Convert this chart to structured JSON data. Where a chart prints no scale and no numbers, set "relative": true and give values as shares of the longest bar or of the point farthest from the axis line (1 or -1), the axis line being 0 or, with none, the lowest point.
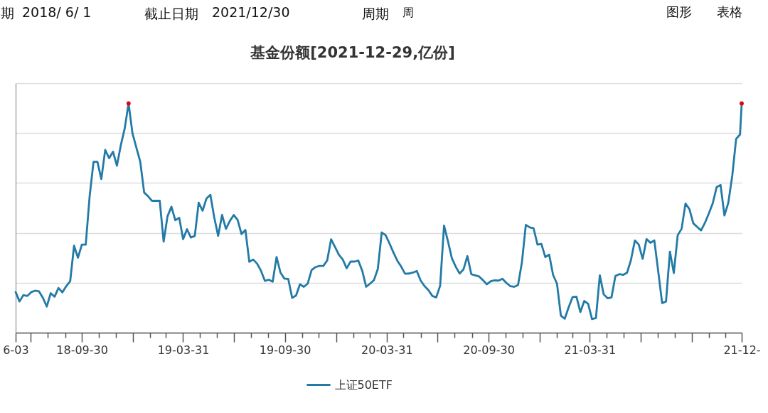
{
  "chart_data": {
    "type": "line",
    "title": "基金份额[2021-12-29,亿份]",
    "annotations": [
      "期",
      "2018/ 6/ 1",
      "截止日期",
      "2021/12/30",
      "周期",
      "周",
      "图形",
      "表格"
    ],
    "relative": true,
    "grid": "y",
    "legend": "bottom",
    "xlim": [
      "2018-06-03",
      "2021-12-29"
    ],
    "xticks": [
      {
        "value": "2018-06-03",
        "label": "6-03"
      },
      {
        "value": "2018-06-30",
        "label": null
      },
      {
        "value": "2018-07-31",
        "label": null
      },
      {
        "value": "2018-08-31",
        "label": null
      },
      {
        "value": "2018-09-30",
        "label": "18-09-30"
      },
      {
        "value": "2018-10-31",
        "label": null
      },
      {
        "value": "2018-11-30",
        "label": null
      },
      {
        "value": "2018-12-31",
        "label": null
      },
      {
        "value": "2019-01-31",
        "label": null
      },
      {
        "value": "2019-02-28",
        "label": null
      },
      {
        "value": "2019-03-31",
        "label": "19-03-31"
      },
      {
        "value": "2019-04-30",
        "label": null
      },
      {
        "value": "2019-05-31",
        "label": null
      },
      {
        "value": "2019-06-30",
        "label": null
      },
      {
        "value": "2019-07-31",
        "label": null
      },
      {
        "value": "2019-08-31",
        "label": null
      },
      {
        "value": "2019-09-30",
        "label": "19-09-30"
      },
      {
        "value": "2019-10-31",
        "label": null
      },
      {
        "value": "2019-11-30",
        "label": null
      },
      {
        "value": "2019-12-31",
        "label": null
      },
      {
        "value": "2020-01-31",
        "label": null
      },
      {
        "value": "2020-02-29",
        "label": null
      },
      {
        "value": "2020-03-31",
        "label": "20-03-31"
      },
      {
        "value": "2020-04-30",
        "label": null
      },
      {
        "value": "2020-05-31",
        "label": null
      },
      {
        "value": "2020-06-30",
        "label": null
      },
      {
        "value": "2020-07-31",
        "label": null
      },
      {
        "value": "2020-08-31",
        "label": null
      },
      {
        "value": "2020-09-30",
        "label": "20-09-30"
      },
      {
        "value": "2020-10-31",
        "label": null
      },
      {
        "value": "2020-11-30",
        "label": null
      },
      {
        "value": "2020-12-31",
        "label": null
      },
      {
        "value": "2021-01-31",
        "label": null
      },
      {
        "value": "2021-02-28",
        "label": null
      },
      {
        "value": "2021-03-31",
        "label": "21-03-31"
      },
      {
        "value": "2021-04-30",
        "label": null
      },
      {
        "value": "2021-05-31",
        "label": null
      },
      {
        "value": "2021-06-30",
        "label": null
      },
      {
        "value": "2021-07-31",
        "label": null
      },
      {
        "value": "2021-08-31",
        "label": null
      },
      {
        "value": "2021-09-30",
        "label": null
      },
      {
        "value": "2021-10-31",
        "label": null
      },
      {
        "value": "2021-11-30",
        "label": null
      },
      {
        "value": "2021-12-29",
        "label": "21-12-"
      }
    ],
    "x": [
      "2018-06-03",
      "2018-06-10",
      "2018-06-17",
      "2018-06-24",
      "2018-07-01",
      "2018-07-08",
      "2018-07-15",
      "2018-07-22",
      "2018-07-29",
      "2018-08-05",
      "2018-08-12",
      "2018-08-19",
      "2018-08-26",
      "2018-09-02",
      "2018-09-09",
      "2018-09-16",
      "2018-09-23",
      "2018-09-30",
      "2018-10-07",
      "2018-10-14",
      "2018-10-21",
      "2018-10-28",
      "2018-11-04",
      "2018-11-11",
      "2018-11-18",
      "2018-11-25",
      "2018-12-02",
      "2018-12-09",
      "2018-12-16",
      "2018-12-23",
      "2018-12-30",
      "2019-01-06",
      "2019-01-13",
      "2019-01-20",
      "2019-01-27",
      "2019-02-03",
      "2019-02-10",
      "2019-02-17",
      "2019-02-24",
      "2019-03-03",
      "2019-03-10",
      "2019-03-17",
      "2019-03-24",
      "2019-03-31",
      "2019-04-07",
      "2019-04-14",
      "2019-04-21",
      "2019-04-28",
      "2019-05-05",
      "2019-05-12",
      "2019-05-19",
      "2019-05-26",
      "2019-06-02",
      "2019-06-09",
      "2019-06-16",
      "2019-06-23",
      "2019-06-30",
      "2019-07-07",
      "2019-07-14",
      "2019-07-21",
      "2019-07-28",
      "2019-08-04",
      "2019-08-11",
      "2019-08-18",
      "2019-08-25",
      "2019-09-01",
      "2019-09-08",
      "2019-09-15",
      "2019-09-22",
      "2019-09-29",
      "2019-10-06",
      "2019-10-13",
      "2019-10-20",
      "2019-10-27",
      "2019-11-03",
      "2019-11-10",
      "2019-11-17",
      "2019-11-24",
      "2019-12-01",
      "2019-12-08",
      "2019-12-15",
      "2019-12-22",
      "2019-12-29",
      "2020-01-05",
      "2020-01-12",
      "2020-01-19",
      "2020-01-26",
      "2020-02-02",
      "2020-02-09",
      "2020-02-16",
      "2020-02-23",
      "2020-03-01",
      "2020-03-08",
      "2020-03-15",
      "2020-03-22",
      "2020-03-29",
      "2020-04-05",
      "2020-04-12",
      "2020-04-19",
      "2020-04-26",
      "2020-05-03",
      "2020-05-10",
      "2020-05-17",
      "2020-05-24",
      "2020-05-31",
      "2020-06-07",
      "2020-06-14",
      "2020-06-21",
      "2020-06-28",
      "2020-07-05",
      "2020-07-12",
      "2020-07-19",
      "2020-07-26",
      "2020-08-02",
      "2020-08-09",
      "2020-08-16",
      "2020-08-23",
      "2020-08-30",
      "2020-09-06",
      "2020-09-13",
      "2020-09-20",
      "2020-09-27",
      "2020-10-04",
      "2020-10-11",
      "2020-10-18",
      "2020-10-25",
      "2020-11-01",
      "2020-11-08",
      "2020-11-15",
      "2020-11-22",
      "2020-11-29",
      "2020-12-06",
      "2020-12-13",
      "2020-12-20",
      "2020-12-27",
      "2021-01-03",
      "2021-01-10",
      "2021-01-17",
      "2021-01-24",
      "2021-01-31",
      "2021-02-07",
      "2021-02-14",
      "2021-02-21",
      "2021-02-28",
      "2021-03-07",
      "2021-03-14",
      "2021-03-21",
      "2021-03-28",
      "2021-04-04",
      "2021-04-11",
      "2021-04-18",
      "2021-04-25",
      "2021-05-02",
      "2021-05-09",
      "2021-05-16",
      "2021-05-23",
      "2021-05-30",
      "2021-06-06",
      "2021-06-13",
      "2021-06-20",
      "2021-06-27",
      "2021-07-04",
      "2021-07-11",
      "2021-07-18",
      "2021-07-25",
      "2021-08-01",
      "2021-08-08",
      "2021-08-15",
      "2021-08-22",
      "2021-08-29",
      "2021-09-05",
      "2021-09-12",
      "2021-09-19",
      "2021-09-26",
      "2021-10-03",
      "2021-10-10",
      "2021-10-17",
      "2021-10-24",
      "2021-10-31",
      "2021-11-07",
      "2021-11-14",
      "2021-11-21",
      "2021-11-28",
      "2021-12-05",
      "2021-12-12",
      "2021-12-19",
      "2021-12-26",
      "2021-12-29"
    ],
    "series": [
      {
        "name": "上证50ETF",
        "color": "#237aa6",
        "values": [
          0.177,
          0.136,
          0.164,
          0.16,
          0.177,
          0.183,
          0.18,
          0.152,
          0.114,
          0.172,
          0.157,
          0.195,
          0.176,
          0.203,
          0.224,
          0.379,
          0.327,
          0.384,
          0.384,
          0.595,
          0.745,
          0.745,
          0.67,
          0.797,
          0.761,
          0.789,
          0.728,
          0.817,
          0.89,
          1.0,
          0.869,
          0.807,
          0.745,
          0.611,
          0.595,
          0.575,
          0.575,
          0.575,
          0.397,
          0.508,
          0.549,
          0.49,
          0.501,
          0.408,
          0.451,
          0.415,
          0.422,
          0.567,
          0.532,
          0.585,
          0.601,
          0.502,
          0.422,
          0.513,
          0.453,
          0.487,
          0.513,
          0.492,
          0.43,
          0.448,
          0.309,
          0.319,
          0.301,
          0.27,
          0.226,
          0.231,
          0.222,
          0.33,
          0.262,
          0.236,
          0.234,
          0.152,
          0.162,
          0.211,
          0.2,
          0.214,
          0.273,
          0.286,
          0.291,
          0.291,
          0.315,
          0.407,
          0.374,
          0.34,
          0.319,
          0.281,
          0.31,
          0.31,
          0.314,
          0.27,
          0.2,
          0.214,
          0.229,
          0.278,
          0.437,
          0.425,
          0.389,
          0.35,
          0.314,
          0.288,
          0.257,
          0.258,
          0.262,
          0.269,
          0.227,
          0.203,
          0.185,
          0.16,
          0.154,
          0.205,
          0.467,
          0.399,
          0.325,
          0.288,
          0.258,
          0.276,
          0.334,
          0.255,
          0.25,
          0.245,
          0.229,
          0.211,
          0.224,
          0.228,
          0.227,
          0.235,
          0.217,
          0.203,
          0.2,
          0.208,
          0.307,
          0.47,
          0.459,
          0.455,
          0.384,
          0.387,
          0.33,
          0.34,
          0.252,
          0.214,
          0.074,
          0.061,
          0.111,
          0.155,
          0.157,
          0.09,
          0.138,
          0.126,
          0.059,
          0.064,
          0.25,
          0.167,
          0.15,
          0.154,
          0.247,
          0.255,
          0.252,
          0.262,
          0.317,
          0.402,
          0.384,
          0.322,
          0.408,
          0.392,
          0.402,
          0.267,
          0.129,
          0.136,
          0.353,
          0.26,
          0.425,
          0.453,
          0.563,
          0.539,
          0.477,
          0.461,
          0.446,
          0.479,
          0.52,
          0.564,
          0.635,
          0.644,
          0.511,
          0.567,
          0.683,
          0.845,
          0.864,
          1.0
        ]
      },
      {
        "type": "scatter",
        "color": "#e60012",
        "x": [
          "2018-12-23",
          "2021-12-29"
        ],
        "values": [
          1.0,
          1.0
        ]
      }
    ]
  }
}
